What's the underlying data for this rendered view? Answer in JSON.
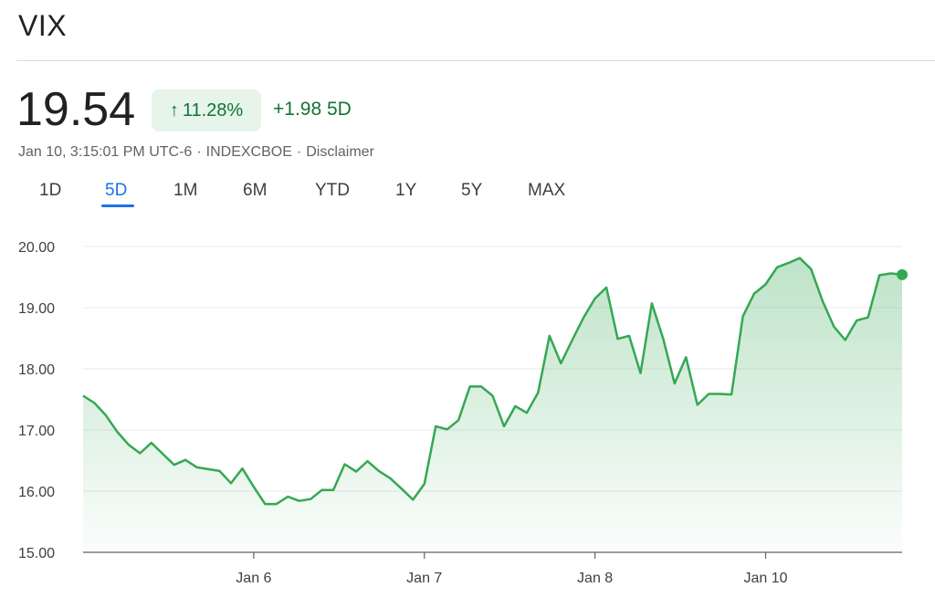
{
  "header": {
    "title": "VIX",
    "price": "19.54",
    "change_percent": "11.28%",
    "change_absolute": "+1.98",
    "change_period": "5D",
    "timestamp": "Jan 10, 3:15:01 PM UTC-6",
    "exchange": "INDEXCBOE",
    "disclaimer": "Disclaimer"
  },
  "tabs": [
    {
      "label": "1D",
      "active": false
    },
    {
      "label": "5D",
      "active": true
    },
    {
      "label": "1M",
      "active": false
    },
    {
      "label": "6M",
      "active": false
    },
    {
      "label": "YTD",
      "active": false
    },
    {
      "label": "1Y",
      "active": false
    },
    {
      "label": "5Y",
      "active": false
    },
    {
      "label": "MAX",
      "active": false
    }
  ],
  "colors": {
    "line": "#34a853",
    "fill": "#34a853",
    "positive_text": "#137333",
    "badge_bg": "#e6f4ea",
    "active_tab": "#1a73e8"
  },
  "chart_data": {
    "type": "area",
    "ylim": [
      15.0,
      20.0
    ],
    "y_ticks": [
      "15.00",
      "16.00",
      "17.00",
      "18.00",
      "19.00",
      "20.00"
    ],
    "x_ticks": [
      {
        "label": "Jan 6",
        "index": 15
      },
      {
        "label": "Jan 7",
        "index": 30
      },
      {
        "label": "Jan 8",
        "index": 45
      },
      {
        "label": "Jan 10",
        "index": 60
      }
    ],
    "grid": true,
    "series": [
      {
        "values": [
          17.56,
          17.44,
          17.24,
          16.97,
          16.76,
          16.62,
          16.79,
          16.61,
          16.43,
          16.51,
          16.39,
          16.36,
          16.33,
          16.13,
          16.37,
          16.07,
          15.79,
          15.79,
          15.91,
          15.84,
          15.87,
          16.02,
          16.02,
          16.44,
          16.32,
          16.49,
          16.33,
          16.21,
          16.04,
          15.86,
          16.12,
          17.06,
          17.01,
          17.16,
          17.71,
          17.71,
          17.56,
          17.06,
          17.39,
          17.28,
          17.61,
          18.54,
          18.09,
          18.47,
          18.84,
          19.15,
          19.33,
          18.49,
          18.54,
          17.93,
          19.07,
          18.49,
          17.76,
          18.19,
          17.41,
          17.59,
          17.59,
          17.58,
          18.86,
          19.23,
          19.38,
          19.66,
          19.73,
          19.81,
          19.63,
          19.11,
          18.69,
          18.47,
          18.79,
          18.84,
          19.53,
          19.56,
          19.54
        ]
      }
    ]
  }
}
